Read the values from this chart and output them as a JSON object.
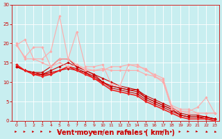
{
  "background_color": "#c8eef0",
  "grid_color": "#ffffff",
  "xlabel": "Vent moyen/en rafales ( km/h )",
  "xlabel_color": "#cc0000",
  "xlabel_fontsize": 7,
  "xtick_color": "#cc0000",
  "ytick_color": "#cc0000",
  "xlim": [
    -0.5,
    23.5
  ],
  "ylim": [
    0,
    30
  ],
  "xticks": [
    0,
    1,
    2,
    3,
    4,
    5,
    6,
    7,
    8,
    9,
    10,
    11,
    12,
    13,
    14,
    15,
    16,
    17,
    18,
    19,
    20,
    21,
    22,
    23
  ],
  "yticks": [
    0,
    5,
    10,
    15,
    20,
    25,
    30
  ],
  "lines": [
    {
      "y": [
        14.5,
        13,
        12.5,
        12.5,
        14,
        16,
        16,
        14,
        13,
        12,
        10,
        9,
        8.5,
        8,
        8,
        6,
        5,
        4,
        3,
        1.5,
        1,
        1,
        1,
        0.5
      ],
      "color": "#cc0000",
      "lw": 0.8
    },
    {
      "y": [
        14,
        13,
        12,
        12,
        13,
        14,
        15,
        14,
        13,
        12,
        11,
        10,
        9,
        8.5,
        8,
        6.5,
        5.5,
        4.5,
        3.5,
        2,
        1.5,
        1.5,
        1,
        0.5
      ],
      "color": "#cc0000",
      "lw": 0.8
    },
    {
      "y": [
        14,
        13,
        12.5,
        12,
        12.5,
        13,
        14,
        13.5,
        12.5,
        11,
        10,
        9,
        8.5,
        8,
        7.5,
        6,
        5,
        4,
        3,
        1.5,
        1,
        1,
        1,
        0.5
      ],
      "color": "#cc0000",
      "lw": 0.8
    },
    {
      "y": [
        14,
        13,
        12,
        12,
        12,
        13,
        13.5,
        13,
        12.5,
        11.5,
        10,
        8.5,
        8,
        7.5,
        7,
        5.5,
        4.5,
        3.5,
        2.5,
        1.5,
        1,
        1,
        0.5,
        0.5
      ],
      "color": "#cc0000",
      "lw": 0.8
    },
    {
      "y": [
        14.5,
        13,
        12,
        11.5,
        12,
        13,
        14,
        13,
        12,
        11,
        9.5,
        8,
        7.5,
        7,
        6.5,
        5,
        4,
        3,
        2,
        1,
        0.5,
        0.5,
        0.5,
        0
      ],
      "color": "#ee2222",
      "lw": 1.2
    },
    {
      "y": [
        19.5,
        21,
        16,
        16,
        18,
        27,
        16,
        23,
        14,
        14,
        14.5,
        9.5,
        9,
        14.5,
        14,
        13.5,
        11.5,
        10.5,
        3,
        2.5,
        2.5,
        3.5,
        6,
        2
      ],
      "color": "#ffaaaa",
      "lw": 0.8
    },
    {
      "y": [
        19.5,
        16.5,
        19,
        19,
        14,
        16,
        16,
        14.5,
        13,
        13,
        13.5,
        13,
        13,
        13,
        13,
        12,
        11.5,
        10,
        3.5,
        2.5,
        2,
        2,
        2,
        2
      ],
      "color": "#ffaaaa",
      "lw": 0.8
    },
    {
      "y": [
        20,
        16,
        16,
        15,
        14,
        15,
        14,
        14.5,
        13.5,
        13,
        13,
        14,
        14,
        14.5,
        14.5,
        13,
        12,
        11,
        4,
        3,
        3,
        2,
        2,
        2
      ],
      "color": "#ffaaaa",
      "lw": 0.8
    }
  ],
  "arrows_angles": [
    0,
    0,
    0,
    20,
    0,
    20,
    0,
    0,
    0,
    0,
    0,
    0,
    0,
    0,
    0,
    0,
    0,
    0,
    0,
    0,
    30,
    30,
    45,
    45
  ]
}
